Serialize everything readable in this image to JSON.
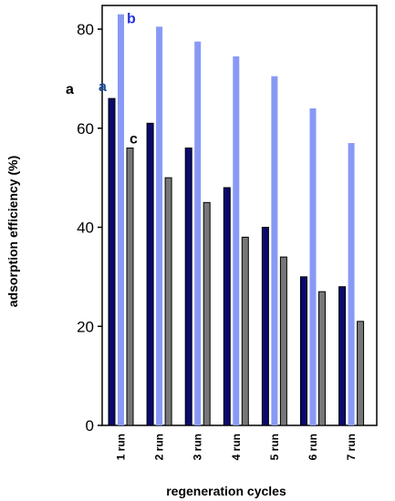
{
  "chart_data": {
    "type": "bar",
    "categories": [
      "1 run",
      "2 run",
      "3 run",
      "4 run",
      "5 run",
      "6 run",
      "7 run"
    ],
    "series": [
      {
        "name": "a",
        "values": [
          66,
          61,
          56,
          48,
          40,
          30,
          28
        ],
        "color": "#0a0a6e",
        "label_color": "#1a4fa0"
      },
      {
        "name": "b",
        "values": [
          83,
          80.5,
          77.5,
          74.5,
          70.5,
          64,
          57
        ],
        "color": "#8899f5",
        "label_color": "#2233dd"
      },
      {
        "name": "c",
        "values": [
          56,
          50,
          45,
          38,
          34,
          27,
          21
        ],
        "color": "#777777",
        "label_color": "#000000"
      }
    ],
    "title": "",
    "xlabel": "regeneration cycles",
    "ylabel": "adsorption efficiency (%)",
    "ylim": [
      0,
      80
    ],
    "yticks": [
      0,
      20,
      40,
      60,
      80
    ],
    "extra_label": "a",
    "grid": false
  }
}
